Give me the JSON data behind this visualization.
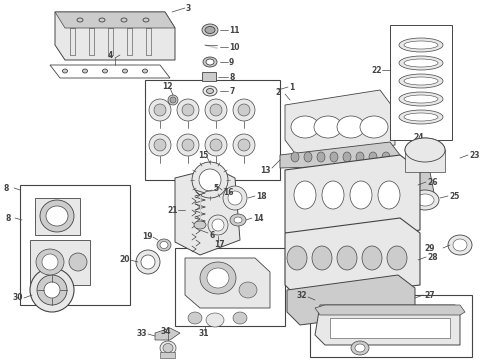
{
  "bg": "#ffffff",
  "lc": "#444444",
  "lw": 0.6,
  "fs": 5.5,
  "fc_light": "#f0f0f0",
  "fc_mid": "#d8d8d8",
  "fc_dark": "#b8b8b8",
  "parts_labels": {
    "valve_cover": "3",
    "valve_gasket": "4",
    "cyl_head": "1",
    "head_gasket": "2",
    "camshaft": "13",
    "rings": "22",
    "piston": "23",
    "pin": "24",
    "con_rod": "25",
    "engine_block": "26",
    "bearing_set": "27",
    "crankshaft": "28",
    "rear_seal": "29",
    "crankpulley": "30",
    "oil_pan": "32",
    "oil_pump": "31",
    "timing_box": "8",
    "front_cover": "18",
    "timing_belt": "21",
    "tensioner": "15",
    "idler": "17",
    "front_seal": "19",
    "cam_sprocket": "16",
    "oil_filter": "20",
    "valve_spring_ret": "5",
    "valve_stem": "6",
    "valve_seal": "14",
    "cam_bolt": "12",
    "small1": "11",
    "small2": "10",
    "small3": "9",
    "small4": "8",
    "small5": "7",
    "small6": "33",
    "small7": "34"
  }
}
